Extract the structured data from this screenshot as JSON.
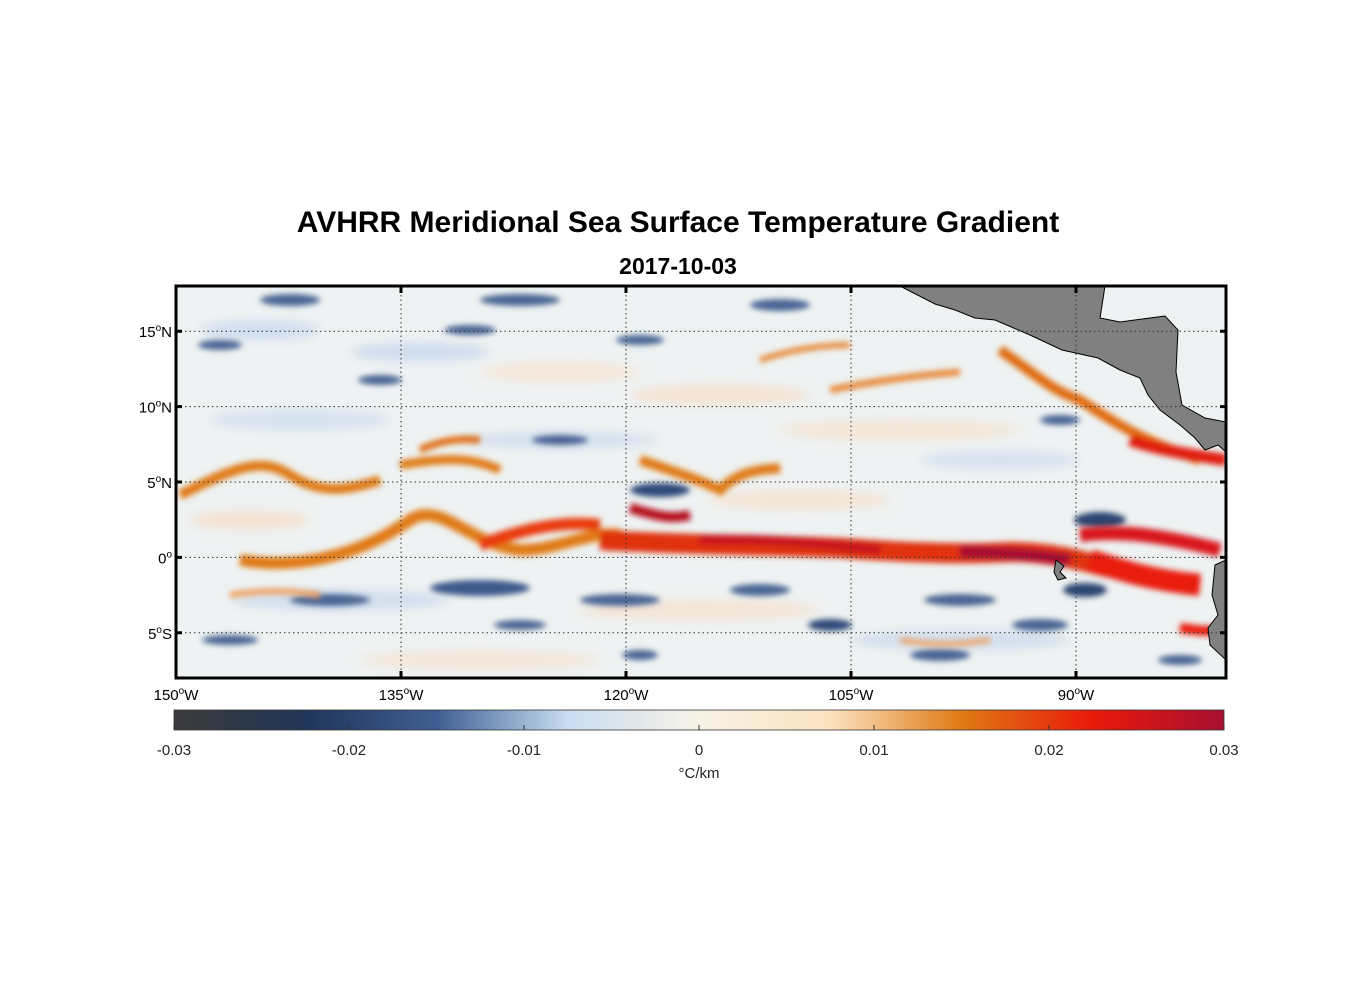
{
  "title": "AVHRR Meridional Sea Surface Temperature Gradient",
  "subtitle": "2017-10-03",
  "map": {
    "lon_range": [
      -150,
      -80
    ],
    "lat_range": [
      -8,
      18
    ],
    "lat_ticks": [
      {
        "value": 15,
        "num": "15",
        "hemi": "N"
      },
      {
        "value": 10,
        "num": "10",
        "hemi": "N"
      },
      {
        "value": 5,
        "num": "5",
        "hemi": "N"
      },
      {
        "value": 0,
        "num": "0",
        "hemi": ""
      },
      {
        "value": -5,
        "num": "5",
        "hemi": "S"
      }
    ],
    "lon_ticks": [
      {
        "value": -150,
        "num": "150",
        "hemi": "W"
      },
      {
        "value": -135,
        "num": "135",
        "hemi": "W"
      },
      {
        "value": -120,
        "num": "120",
        "hemi": "W"
      },
      {
        "value": -105,
        "num": "105",
        "hemi": "W"
      },
      {
        "value": -90,
        "num": "90",
        "hemi": "W"
      }
    ],
    "grid": true,
    "land_color": "#808080"
  },
  "colorbar": {
    "range": [
      -0.03,
      0.03
    ],
    "ticks": [
      "-0.03",
      "-0.02",
      "-0.01",
      "0",
      "0.01",
      "0.02",
      "0.03"
    ],
    "unit": "°C/km",
    "colors": [
      "#3b3b3b",
      "#203558",
      "#3f5f93",
      "#c9ddf2",
      "#f7f2e6",
      "#fbe2c0",
      "#e07a14",
      "#e91a0a",
      "#a80f30"
    ]
  }
}
